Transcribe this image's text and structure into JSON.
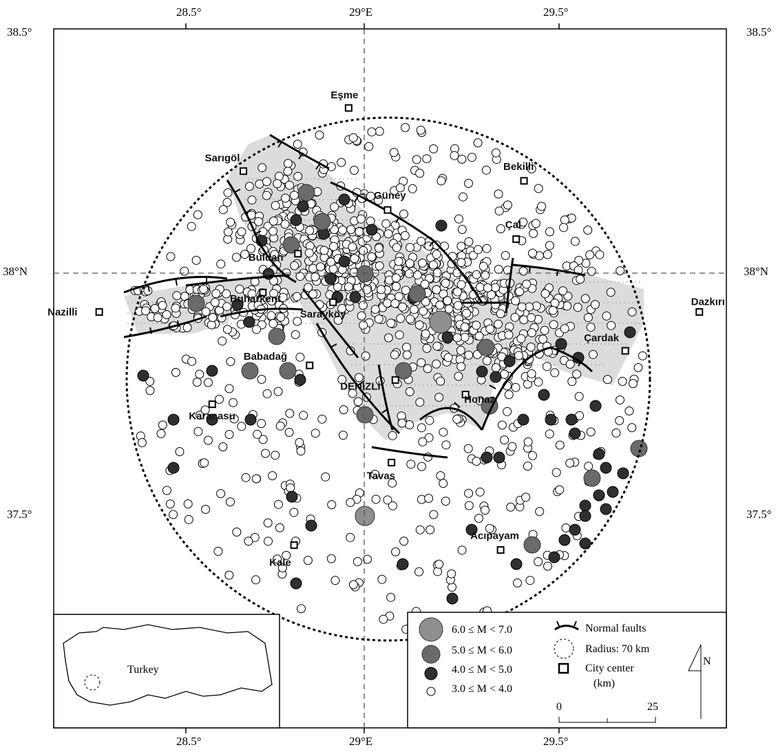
{
  "lon_ticks": [
    "28.5°",
    "29°E",
    "29.5°"
  ],
  "lat_ticks": {
    "north": "38.5°",
    "mid": "38°N",
    "south": "37.5°"
  },
  "cities": [
    {
      "name": "Eşme",
      "lon": 28.96,
      "lat": 38.34
    },
    {
      "name": "Sarıgöl",
      "lon": 28.69,
      "lat": 38.21
    },
    {
      "name": "Bekilli",
      "lon": 29.41,
      "lat": 38.19
    },
    {
      "name": "Güney",
      "lon": 29.06,
      "lat": 38.13
    },
    {
      "name": "Çal",
      "lon": 29.39,
      "lat": 38.07
    },
    {
      "name": "Buldan",
      "lon": 28.83,
      "lat": 38.04
    },
    {
      "name": "Buharkent",
      "lon": 28.74,
      "lat": 37.96
    },
    {
      "name": "Nazilli",
      "lon": 28.32,
      "lat": 37.92
    },
    {
      "name": "Sarayköy",
      "lon": 28.92,
      "lat": 37.94
    },
    {
      "name": "Dazkırı",
      "lon": 29.86,
      "lat": 37.92
    },
    {
      "name": "Çardak",
      "lon": 29.67,
      "lat": 37.84
    },
    {
      "name": "Babadağ",
      "lon": 28.86,
      "lat": 37.81
    },
    {
      "name": "Denizli",
      "display": "DENİZLİ",
      "lon": 29.08,
      "lat": 37.78
    },
    {
      "name": "Karacasu",
      "lon": 28.61,
      "lat": 37.73
    },
    {
      "name": "Honaz",
      "lon": 29.26,
      "lat": 37.75
    },
    {
      "name": "Tavas",
      "lon": 29.07,
      "lat": 37.61
    },
    {
      "name": "Acıpayam",
      "lon": 29.35,
      "lat": 37.43
    },
    {
      "name": "Kale",
      "lon": 28.82,
      "lat": 37.44
    }
  ],
  "legend": {
    "magnitude_classes": [
      {
        "label": "6.0 ≤ M < 7.0",
        "color": "#8f8f8f"
      },
      {
        "label": "5.0 ≤ M < 6.0",
        "color": "#6a6a6a"
      },
      {
        "label": "4.0 ≤ M < 5.0",
        "color": "#2f2f2f"
      },
      {
        "label": "3.0 ≤ M < 4.0",
        "color": "#ffffff"
      }
    ],
    "normal_faults": "Normal faults",
    "radius": "Radius: 70 km",
    "city_center": "City center",
    "km": "(km)",
    "scale_start": "0",
    "scale_end": "25",
    "north": "N"
  },
  "inset": {
    "label": "Turkey"
  },
  "colors": {
    "basin_fill": "#dcdcdc",
    "boundary": "#000000"
  }
}
